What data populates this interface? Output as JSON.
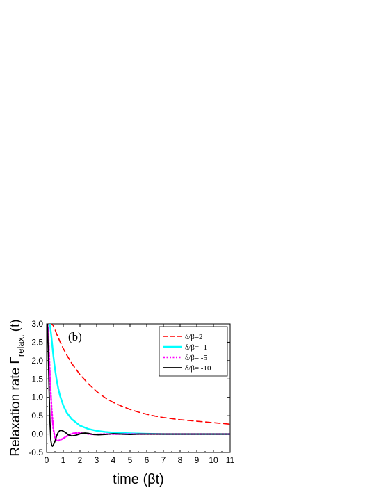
{
  "chart_data": {
    "type": "line",
    "panel_label": "(b)",
    "xlabel": "time (βt)",
    "ylabel_main": "Relaxation rate Γ",
    "ylabel_sub": "relax.",
    "ylabel_tail": "(t)",
    "xlim": [
      0,
      11
    ],
    "ylim": [
      -0.5,
      3.0
    ],
    "x_ticks": [
      0,
      1,
      2,
      3,
      4,
      5,
      6,
      7,
      8,
      9,
      10,
      11
    ],
    "y_ticks": [
      -0.5,
      0.0,
      0.5,
      1.0,
      1.5,
      2.0,
      2.5,
      3.0
    ],
    "y_tick_labels": [
      "-0.5",
      "0.0",
      "0.5",
      "1.0",
      "1.5",
      "2.0",
      "2.5",
      "3.0"
    ],
    "grid": false,
    "legend_position": "top-right",
    "series": [
      {
        "name": "δ/β=2",
        "color": "#ff0000",
        "style": "dashed",
        "x": [
          0.2,
          0.3,
          0.4,
          0.5,
          0.6,
          0.8,
          1.0,
          1.2,
          1.5,
          2.0,
          2.5,
          3.0,
          3.5,
          4.0,
          4.5,
          5.0,
          5.5,
          6.0,
          6.5,
          7.0,
          7.5,
          8.0,
          8.5,
          9.0,
          9.5,
          10.0,
          10.5,
          11.0
        ],
        "y": [
          3.0,
          3.0,
          2.95,
          2.85,
          2.73,
          2.52,
          2.33,
          2.16,
          1.93,
          1.62,
          1.37,
          1.16,
          0.99,
          0.86,
          0.76,
          0.67,
          0.6,
          0.54,
          0.49,
          0.45,
          0.42,
          0.39,
          0.37,
          0.35,
          0.33,
          0.31,
          0.29,
          0.27
        ]
      },
      {
        "name": "δ/β= -1",
        "color": "#00ffff",
        "style": "solid",
        "x": [
          0.2,
          0.3,
          0.4,
          0.5,
          0.6,
          0.7,
          0.8,
          1.0,
          1.2,
          1.5,
          2.0,
          2.5,
          3.0,
          3.5,
          4.0,
          5.0,
          6.0,
          7.0,
          8.0,
          9.0,
          10.0,
          11.0
        ],
        "y": [
          3.0,
          2.6,
          2.15,
          1.78,
          1.48,
          1.24,
          1.05,
          0.78,
          0.59,
          0.41,
          0.23,
          0.14,
          0.09,
          0.06,
          0.04,
          0.02,
          0.01,
          0.0,
          0.0,
          0.0,
          0.0,
          0.0
        ]
      },
      {
        "name": "δ/β= -5",
        "color": "#ff00ff",
        "style": "dotted",
        "x": [
          0.05,
          0.1,
          0.15,
          0.2,
          0.3,
          0.4,
          0.5,
          0.6,
          0.7,
          0.8,
          0.9,
          1.0,
          1.2,
          1.4,
          1.6,
          1.8,
          2.0,
          2.2,
          2.4,
          2.6,
          2.8,
          3.0,
          3.5,
          4.0,
          4.5,
          5.0,
          6.0,
          7.0,
          8.0,
          9.0,
          10.0,
          11.0
        ],
        "y": [
          3.0,
          2.8,
          2.2,
          1.6,
          0.7,
          0.15,
          -0.1,
          -0.17,
          -0.18,
          -0.16,
          -0.14,
          -0.12,
          -0.06,
          -0.01,
          0.02,
          0.03,
          0.03,
          0.02,
          0.01,
          0.0,
          -0.01,
          -0.01,
          0.0,
          0.0,
          0.0,
          0.0,
          0.0,
          0.0,
          0.0,
          0.0,
          0.0,
          0.0
        ]
      },
      {
        "name": "δ/β= -10",
        "color": "#000000",
        "style": "solid",
        "x": [
          0.05,
          0.1,
          0.15,
          0.2,
          0.25,
          0.3,
          0.35,
          0.4,
          0.5,
          0.6,
          0.7,
          0.8,
          0.9,
          1.0,
          1.1,
          1.2,
          1.3,
          1.5,
          1.7,
          1.9,
          2.1,
          2.3,
          2.5,
          2.8,
          3.1,
          3.5,
          4.0,
          4.5,
          5.0,
          5.5,
          6.0,
          7.0,
          8.0,
          9.0,
          10.0,
          11.0
        ],
        "y": [
          3.0,
          2.2,
          1.2,
          0.35,
          -0.15,
          -0.3,
          -0.33,
          -0.3,
          -0.2,
          -0.05,
          0.05,
          0.1,
          0.1,
          0.08,
          0.05,
          0.02,
          -0.02,
          -0.05,
          -0.04,
          -0.01,
          0.02,
          0.03,
          0.02,
          -0.01,
          -0.02,
          -0.01,
          0.01,
          0.0,
          -0.01,
          0.0,
          0.0,
          0.0,
          0.0,
          0.0,
          0.0,
          0.0
        ]
      }
    ]
  }
}
